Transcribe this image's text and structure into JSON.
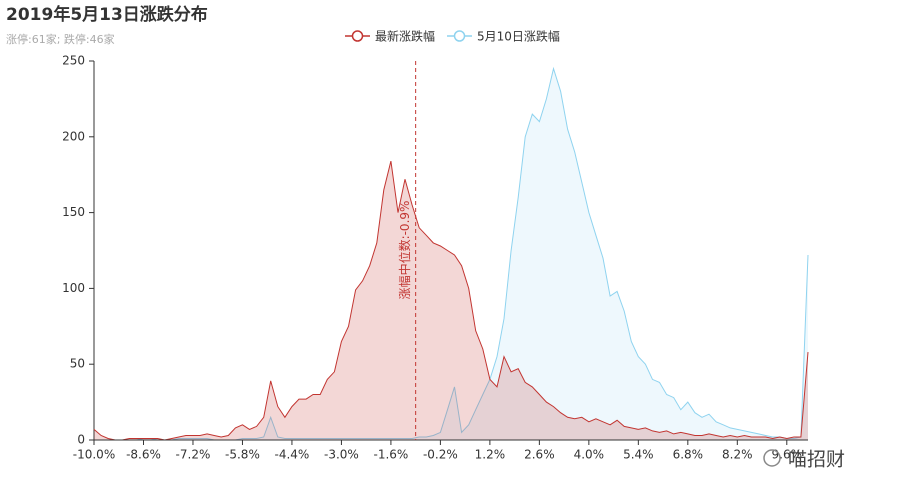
{
  "chart_data": {
    "type": "area",
    "title": "2019年5月13日涨跌分布",
    "subtitle": "涨停:61家; 跌停:46家",
    "x": [
      -10,
      -9.8,
      -9.6,
      -9.4,
      -9.2,
      -9,
      -8.8,
      -8.6,
      -8.4,
      -8.2,
      -8,
      -7.8,
      -7.6,
      -7.4,
      -7.2,
      -7,
      -6.8,
      -6.6,
      -6.4,
      -6.2,
      -6,
      -5.8,
      -5.6,
      -5.4,
      -5.2,
      -5,
      -4.8,
      -4.6,
      -4.4,
      -4.2,
      -4,
      -3.8,
      -3.6,
      -3.4,
      -3.2,
      -3,
      -2.8,
      -2.6,
      -2.4,
      -2.2,
      -2,
      -1.8,
      -1.6,
      -1.4,
      -1.2,
      -1,
      -0.8,
      -0.6,
      -0.4,
      -0.2,
      0,
      0.2,
      0.4,
      0.6,
      0.8,
      1,
      1.2,
      1.4,
      1.6,
      1.8,
      2,
      2.2,
      2.4,
      2.6,
      2.8,
      3,
      3.2,
      3.4,
      3.6,
      3.8,
      4,
      4.2,
      4.4,
      4.6,
      4.8,
      5,
      5.2,
      5.4,
      5.6,
      5.8,
      6,
      6.2,
      6.4,
      6.6,
      6.8,
      7,
      7.2,
      7.4,
      7.6,
      7.8,
      8,
      8.2,
      8.4,
      8.6,
      8.8,
      9,
      9.2,
      9.4,
      9.6,
      9.8,
      10,
      10.2
    ],
    "series": [
      {
        "name": "最新涨跌幅",
        "color": "#c23531",
        "values": [
          7,
          3,
          1,
          0,
          0,
          1,
          1,
          1,
          1,
          1,
          0,
          1,
          2,
          3,
          3,
          3,
          4,
          3,
          2,
          3,
          8,
          10,
          7,
          9,
          15,
          39,
          22,
          15,
          22,
          27,
          27,
          30,
          30,
          40,
          45,
          65,
          75,
          99,
          105,
          115,
          130,
          165,
          184,
          150,
          172,
          155,
          140,
          135,
          130,
          128,
          125,
          122,
          115,
          100,
          72,
          60,
          40,
          35,
          55,
          45,
          47,
          38,
          35,
          30,
          25,
          22,
          18,
          15,
          14,
          15,
          12,
          14,
          12,
          10,
          13,
          9,
          8,
          7,
          8,
          6,
          5,
          6,
          4,
          5,
          4,
          3,
          3,
          4,
          3,
          2,
          3,
          2,
          3,
          2,
          2,
          2,
          1,
          2,
          1,
          2,
          2,
          58
        ]
      },
      {
        "name": "5月10日涨跌幅",
        "color": "#8fd3ef",
        "values": [
          0,
          0,
          0,
          0,
          0,
          0,
          0,
          1,
          1,
          0,
          0,
          0,
          1,
          1,
          1,
          1,
          1,
          0,
          0,
          0,
          0,
          1,
          1,
          1,
          2,
          15,
          2,
          1,
          1,
          1,
          1,
          1,
          1,
          1,
          1,
          1,
          1,
          1,
          1,
          1,
          1,
          1,
          1,
          1,
          1,
          1,
          2,
          2,
          3,
          5,
          20,
          35,
          5,
          10,
          20,
          30,
          40,
          55,
          80,
          125,
          160,
          200,
          215,
          210,
          225,
          245,
          230,
          205,
          190,
          170,
          150,
          135,
          120,
          95,
          98,
          85,
          65,
          55,
          50,
          40,
          38,
          30,
          28,
          20,
          25,
          18,
          15,
          17,
          12,
          10,
          8,
          7,
          6,
          5,
          4,
          3,
          2,
          2,
          1,
          1,
          2,
          122
        ]
      }
    ],
    "xlim": [
      -10,
      10.2
    ],
    "xticks": [
      {
        "value": -10,
        "label": "-10.0%"
      },
      {
        "value": -8.6,
        "label": "-8.6%"
      },
      {
        "value": -7.2,
        "label": "-7.2%"
      },
      {
        "value": -5.8,
        "label": "-5.8%"
      },
      {
        "value": -4.4,
        "label": "-4.4%"
      },
      {
        "value": -3,
        "label": "-3.0%"
      },
      {
        "value": -1.6,
        "label": "-1.6%"
      },
      {
        "value": -0.2,
        "label": "-0.2%"
      },
      {
        "value": 1.2,
        "label": "1.2%"
      },
      {
        "value": 2.6,
        "label": "2.6%"
      },
      {
        "value": 4,
        "label": "4.0%"
      },
      {
        "value": 5.4,
        "label": "5.4%"
      },
      {
        "value": 6.8,
        "label": "6.8%"
      },
      {
        "value": 8.2,
        "label": "8.2%"
      },
      {
        "value": 9.6,
        "label": "9.6%"
      }
    ],
    "ylim": [
      0,
      250
    ],
    "yticks": [
      0,
      50,
      100,
      150,
      200,
      250
    ],
    "median": -0.9,
    "median_label": "涨幅中位数:-0.9%"
  },
  "watermark": "喵招财"
}
